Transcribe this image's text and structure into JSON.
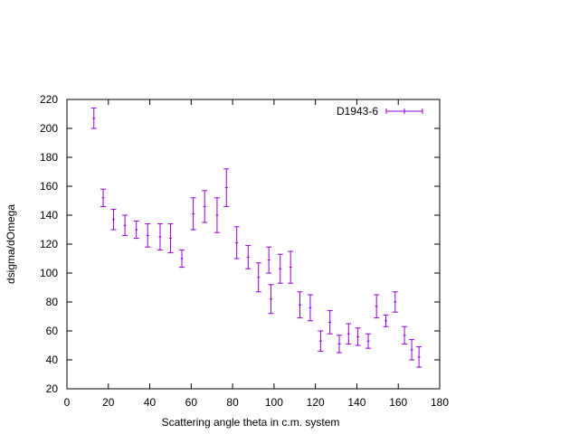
{
  "chart_data": {
    "type": "scatter",
    "xlabel": "Scattering angle theta in c.m. system",
    "ylabel": "dsigma/dOmega",
    "xlim": [
      0,
      180
    ],
    "ylim": [
      20,
      220
    ],
    "xticks": [
      0,
      20,
      40,
      60,
      80,
      100,
      120,
      140,
      160,
      180
    ],
    "yticks": [
      20,
      40,
      60,
      80,
      100,
      120,
      140,
      160,
      180,
      200,
      220
    ],
    "grid": false,
    "legend_position": "top-right",
    "series": [
      {
        "name": "D1943-6",
        "color": "#9400d3",
        "points": [
          {
            "x": 13,
            "y": 207,
            "err": 7
          },
          {
            "x": 17.5,
            "y": 152,
            "err": 6
          },
          {
            "x": 22.5,
            "y": 137,
            "err": 7
          },
          {
            "x": 28,
            "y": 133,
            "err": 7
          },
          {
            "x": 33.5,
            "y": 130,
            "err": 6
          },
          {
            "x": 39,
            "y": 126,
            "err": 8
          },
          {
            "x": 45,
            "y": 125,
            "err": 9
          },
          {
            "x": 50,
            "y": 124,
            "err": 10
          },
          {
            "x": 55.5,
            "y": 110,
            "err": 6
          },
          {
            "x": 61,
            "y": 141,
            "err": 11
          },
          {
            "x": 66.5,
            "y": 146,
            "err": 11
          },
          {
            "x": 72.5,
            "y": 140,
            "err": 12
          },
          {
            "x": 77,
            "y": 159,
            "err": 13
          },
          {
            "x": 82,
            "y": 121,
            "err": 11
          },
          {
            "x": 87.5,
            "y": 111,
            "err": 8
          },
          {
            "x": 92.5,
            "y": 97,
            "err": 10
          },
          {
            "x": 97.5,
            "y": 109,
            "err": 9
          },
          {
            "x": 98.5,
            "y": 82,
            "err": 10
          },
          {
            "x": 103,
            "y": 103,
            "err": 10
          },
          {
            "x": 108,
            "y": 104,
            "err": 11
          },
          {
            "x": 112.5,
            "y": 78,
            "err": 9
          },
          {
            "x": 117.5,
            "y": 76,
            "err": 9
          },
          {
            "x": 122.5,
            "y": 53,
            "err": 7
          },
          {
            "x": 127,
            "y": 66,
            "err": 8
          },
          {
            "x": 131.5,
            "y": 51,
            "err": 6
          },
          {
            "x": 136,
            "y": 58,
            "err": 7
          },
          {
            "x": 140.5,
            "y": 56,
            "err": 6
          },
          {
            "x": 145.5,
            "y": 53,
            "err": 5
          },
          {
            "x": 149.5,
            "y": 77,
            "err": 8
          },
          {
            "x": 154,
            "y": 67,
            "err": 4
          },
          {
            "x": 158.5,
            "y": 80,
            "err": 7
          },
          {
            "x": 163,
            "y": 57,
            "err": 6
          },
          {
            "x": 166.5,
            "y": 47,
            "err": 7
          },
          {
            "x": 170,
            "y": 42,
            "err": 7
          }
        ]
      }
    ]
  }
}
